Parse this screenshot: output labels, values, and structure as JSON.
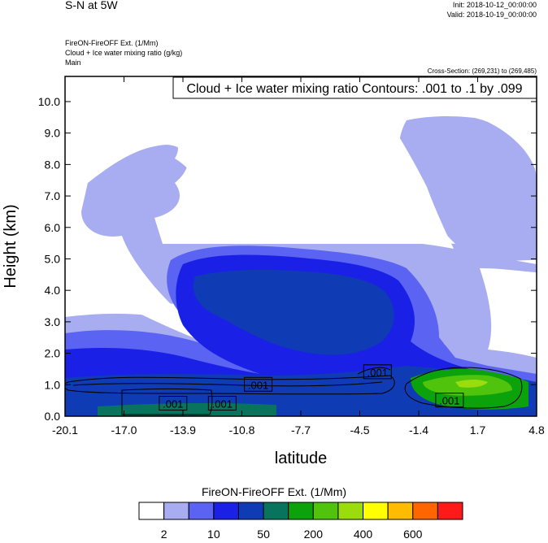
{
  "header": {
    "title": "S-N at 5W",
    "init": "Init: 2018-10-12_00:00:00",
    "valid": "Valid: 2018-10-19_00:00:00",
    "field1": "FireON-FireOFF Ext.   (1/Mm)",
    "field2": "Cloud + Ice water mixing ratio   (g/kg)",
    "field3": "Main",
    "cross_section": "Cross-Section: (269,231) to (269,485)"
  },
  "chart_data": {
    "type": "heatmap",
    "contour_title": "Cloud + Ice water mixing ratio Contours: .001 to .1 by .099",
    "xlabel": "latitude",
    "ylabel": "Height (km)",
    "xlim": [
      -20.1,
      4.8
    ],
    "ylim": [
      0.0,
      10.8
    ],
    "x_ticks": [
      "-20.1",
      "-17.0",
      "-13.9",
      "-10.8",
      "-7.7",
      "-4.5",
      "-1.4",
      "1.7",
      "4.8"
    ],
    "y_ticks": [
      "0.0",
      "1.0",
      "2.0",
      "3.0",
      "4.0",
      "5.0",
      "6.0",
      "7.0",
      "8.0",
      "9.0",
      "10.0"
    ],
    "contour_labels": [
      {
        "text": ".001",
        "x": -14.4,
        "y": 0.4
      },
      {
        "text": ".001",
        "x": -11.8,
        "y": 0.4
      },
      {
        "text": ".001",
        "x": -9.9,
        "y": 1.0
      },
      {
        "text": ".001",
        "x": -3.6,
        "y": 1.4
      },
      {
        "text": ".001",
        "x": 0.2,
        "y": 0.5
      }
    ],
    "legend": {
      "title": "FireON-FireOFF Ext.  (1/Mm)",
      "labels": [
        "2",
        "10",
        "50",
        "200",
        "400",
        "600"
      ],
      "colors": [
        "#ffffff",
        "#a7adf0",
        "#5a63f2",
        "#1b20e6",
        "#0f3bb4",
        "#08745e",
        "#0ca20c",
        "#50c30c",
        "#9bdc0c",
        "#ffff00",
        "#ffbb00",
        "#ff6600",
        "#ff1a1a"
      ]
    }
  }
}
